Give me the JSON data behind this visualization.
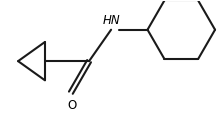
{
  "bg_color": "#ffffff",
  "line_color": "#1a1a1a",
  "line_width": 1.5,
  "o_label": "O",
  "n_label": "HN",
  "text_color": "#000000",
  "fig_width": 2.22,
  "fig_height": 1.15,
  "dpi": 100
}
